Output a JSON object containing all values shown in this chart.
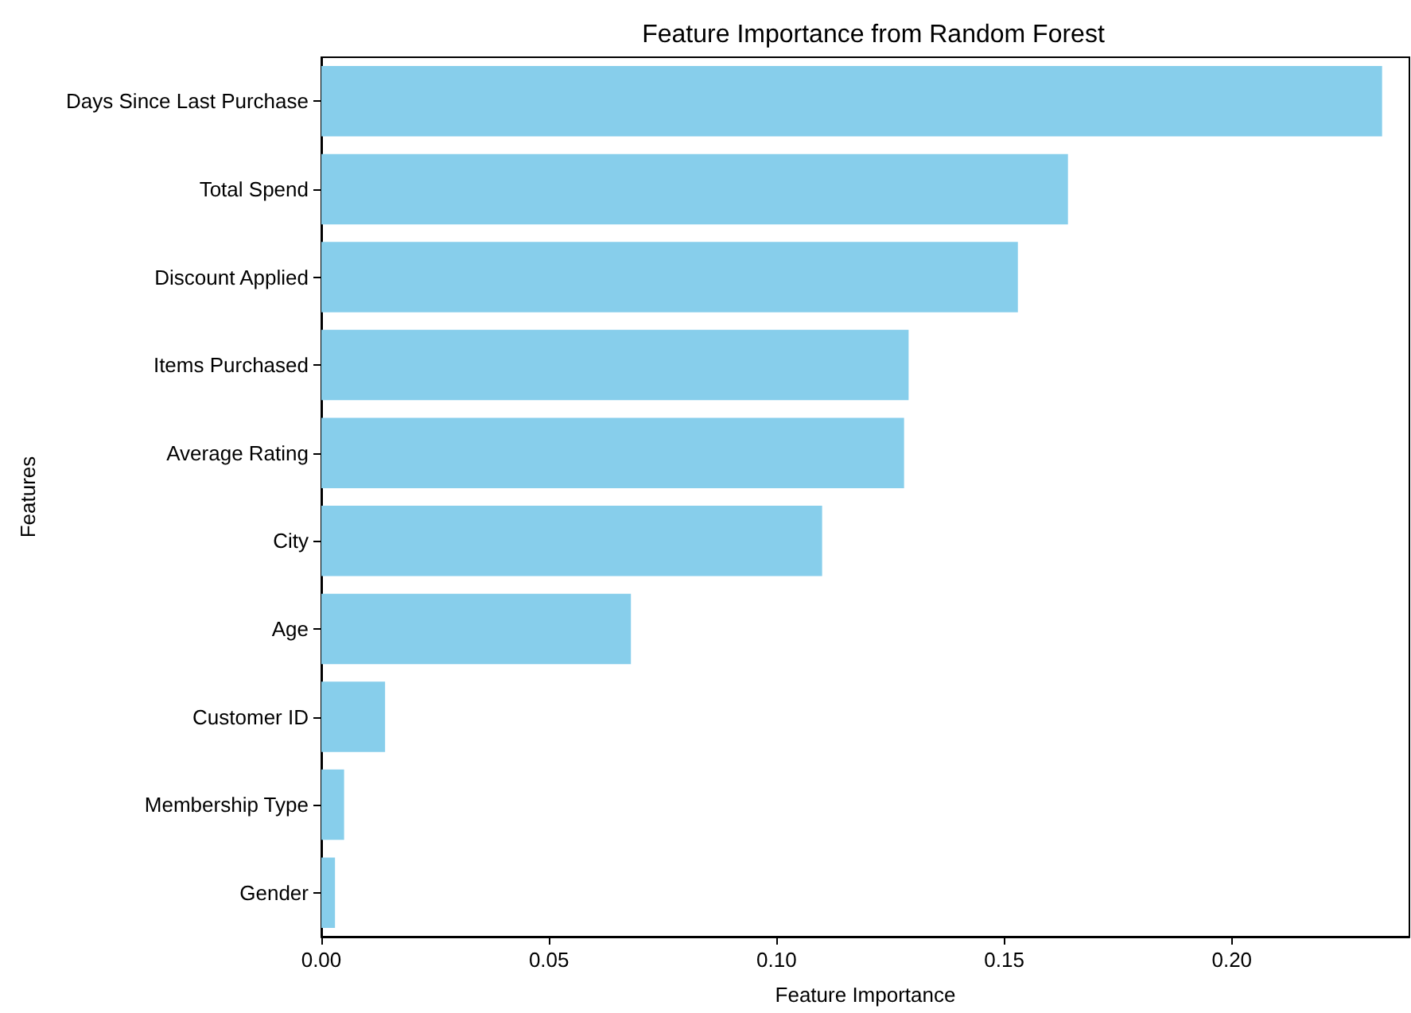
{
  "chart_data": {
    "type": "bar",
    "orientation": "horizontal",
    "title": "Feature Importance from Random Forest",
    "xlabel": "Feature Importance",
    "ylabel": "Features",
    "categories": [
      "Days Since Last Purchase",
      "Total Spend",
      "Discount Applied",
      "Items Purchased",
      "Average Rating",
      "City",
      "Age",
      "Customer ID",
      "Membership Type",
      "Gender"
    ],
    "values": [
      0.233,
      0.164,
      0.153,
      0.129,
      0.128,
      0.11,
      0.068,
      0.014,
      0.005,
      0.003
    ],
    "color": "#87ceeb",
    "xlim": [
      0,
      0.239
    ],
    "xticks": [
      {
        "value": 0,
        "label": "0.00"
      },
      {
        "value": 0.05,
        "label": "0.05"
      },
      {
        "value": 0.1,
        "label": "0.10"
      },
      {
        "value": 0.15,
        "label": "0.15"
      },
      {
        "value": 0.2,
        "label": "0.20"
      }
    ],
    "grid": false
  }
}
